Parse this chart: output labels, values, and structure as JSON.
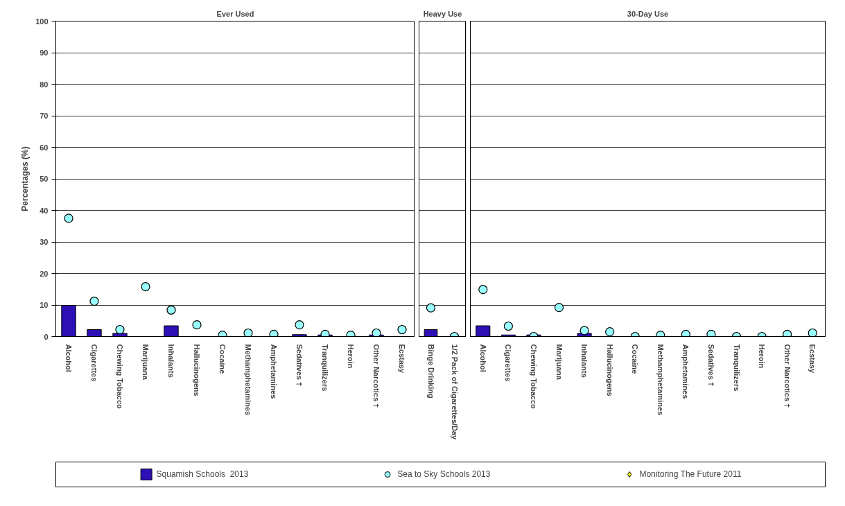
{
  "chart_data": [
    {
      "type": "bar",
      "title": "Ever Used",
      "ylabel": "Percentages (%)",
      "categories": [
        "Alcohol",
        "Cigarettes",
        "Chewing Tobacco",
        "Marijuana",
        "Inhalants",
        "Hallucinogens",
        "Cocaine",
        "Methamphetamines",
        "Amphetamines",
        "Sedatives †",
        "Tranquilizers",
        "Heroin",
        "Other Narcotics †",
        "Ecstasy"
      ],
      "ylim": [
        0,
        100
      ],
      "yticks": [
        0,
        10,
        20,
        30,
        40,
        50,
        60,
        70,
        80,
        90,
        100
      ],
      "grid": "y",
      "legend": "bottom",
      "series": [
        {
          "name": "Squamish Schools  2013",
          "color": "#2e0fb5",
          "values": [
            9.9,
            2.2,
            1.0,
            null,
            3.4,
            null,
            null,
            null,
            null,
            0.6,
            0.5,
            null,
            0.5,
            null
          ]
        },
        {
          "name": "Sea to Sky Schools 2013",
          "type": "scatter",
          "marker": "circle",
          "color": "#99ffff",
          "values": [
            37.5,
            11.2,
            2.2,
            15.8,
            8.4,
            3.7,
            0.4,
            1.1,
            0.7,
            3.7,
            0.7,
            0.4,
            1.1,
            2.2
          ]
        },
        {
          "name": "Monitoring The Future 2011",
          "type": "scatter",
          "marker": "diamond",
          "color": "#ffff00",
          "values": [
            null,
            null,
            null,
            null,
            null,
            null,
            null,
            null,
            null,
            null,
            null,
            null,
            null,
            null
          ]
        }
      ]
    },
    {
      "type": "bar",
      "title": "Heavy Use",
      "categories": [
        "Binge Drinking",
        "1/2 Pack of Cigarettes/Day"
      ],
      "ylim": [
        0,
        100
      ],
      "yticks": [
        0,
        10,
        20,
        30,
        40,
        50,
        60,
        70,
        80,
        90,
        100
      ],
      "grid": "y",
      "tick_labels": "x",
      "series": [
        {
          "color": "#2e0fb5",
          "values": [
            2.2,
            null
          ]
        },
        {
          "type": "scatter",
          "marker": "circle",
          "color": "#99ffff",
          "values": [
            9.1,
            0
          ]
        }
      ]
    },
    {
      "type": "bar",
      "title": "30-Day Use",
      "categories": [
        "Alcohol",
        "Cigarettes",
        "Chewing Tobacco",
        "Marijuana",
        "Inhalants",
        "Hallucinogens",
        "Cocaine",
        "Methamphetamines",
        "Amphetamines",
        "Sedatives †",
        "Tranquilizers",
        "Heroin",
        "Other Narcotics †",
        "Ecstasy"
      ],
      "ylim": [
        0,
        100
      ],
      "yticks": [
        0,
        10,
        20,
        30,
        40,
        50,
        60,
        70,
        80,
        90,
        100
      ],
      "grid": "y",
      "tick_labels": "x",
      "series": [
        {
          "color": "#2e0fb5",
          "values": [
            3.4,
            0.5,
            0.5,
            null,
            1.0,
            null,
            null,
            null,
            null,
            null,
            null,
            null,
            null,
            null
          ]
        },
        {
          "type": "scatter",
          "marker": "circle",
          "color": "#99ffff",
          "values": [
            14.9,
            3.3,
            0,
            9.2,
            1.9,
            1.5,
            0,
            0.4,
            0.7,
            0.7,
            0,
            0,
            0.7,
            1.1
          ]
        }
      ]
    }
  ]
}
